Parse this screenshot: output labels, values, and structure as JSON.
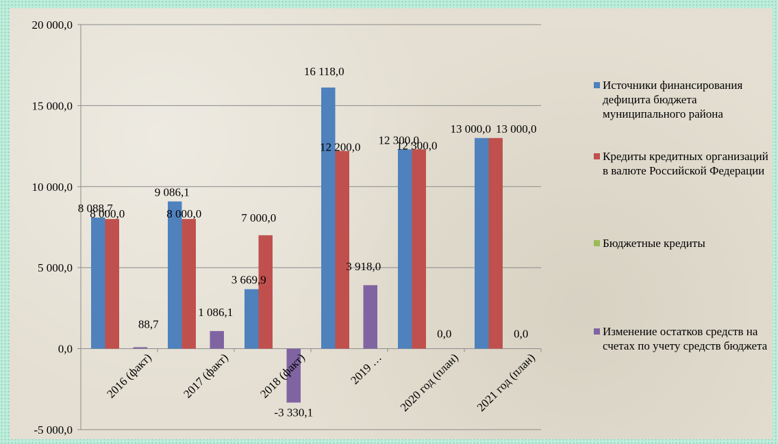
{
  "chart_data": {
    "type": "bar",
    "categories": [
      "2016 (факт)",
      "2017 (факт)",
      "2018 (факт)",
      "2019 …",
      "2020 год (план)",
      "2021 год (план)"
    ],
    "ylim": [
      -5000,
      20000
    ],
    "yticks": [
      -5000,
      0,
      5000,
      10000,
      15000,
      20000
    ],
    "ytick_labels": [
      "-5 000,0",
      "0,0",
      "5 000,0",
      "10 000,0",
      "15 000,0",
      "20 000,0"
    ],
    "grid": true,
    "legend_position": "right",
    "series": [
      {
        "name": "Источники финансирования дефицита бюджета муниципального района",
        "color": "#4f81bd",
        "values": [
          8088.7,
          9086.1,
          3669.9,
          16118.0,
          12300.0,
          13000.0
        ],
        "labels": [
          "8 088,7",
          "9 086,1",
          "3 669,9",
          "16 118,0",
          "12 300,0",
          "13 000,0"
        ]
      },
      {
        "name": "Кредиты кредитных организаций в валюте Российской Федерации",
        "color": "#c0504d",
        "values": [
          8000.0,
          8000.0,
          7000.0,
          12200.0,
          12300.0,
          13000.0
        ],
        "labels": [
          "8 000,0",
          "8 000,0",
          "7 000,0",
          "12 200,0",
          "12 300,0",
          "13 000,0"
        ]
      },
      {
        "name": "Бюджетные кредиты",
        "color": "#9bbb59",
        "values": [
          0,
          0,
          0,
          0,
          0,
          0
        ],
        "labels": [
          "",
          "",
          "",
          "",
          "",
          ""
        ]
      },
      {
        "name": "Изменение остатков средств на счетах по учету средств бюджета",
        "color": "#8064a2",
        "values": [
          88.7,
          1086.1,
          -3330.1,
          3918.0,
          0.0,
          0.0
        ],
        "labels": [
          "88,7",
          "1 086,1",
          "-3 330,1",
          "3 918,0",
          "0,0",
          "0,0"
        ]
      }
    ]
  }
}
